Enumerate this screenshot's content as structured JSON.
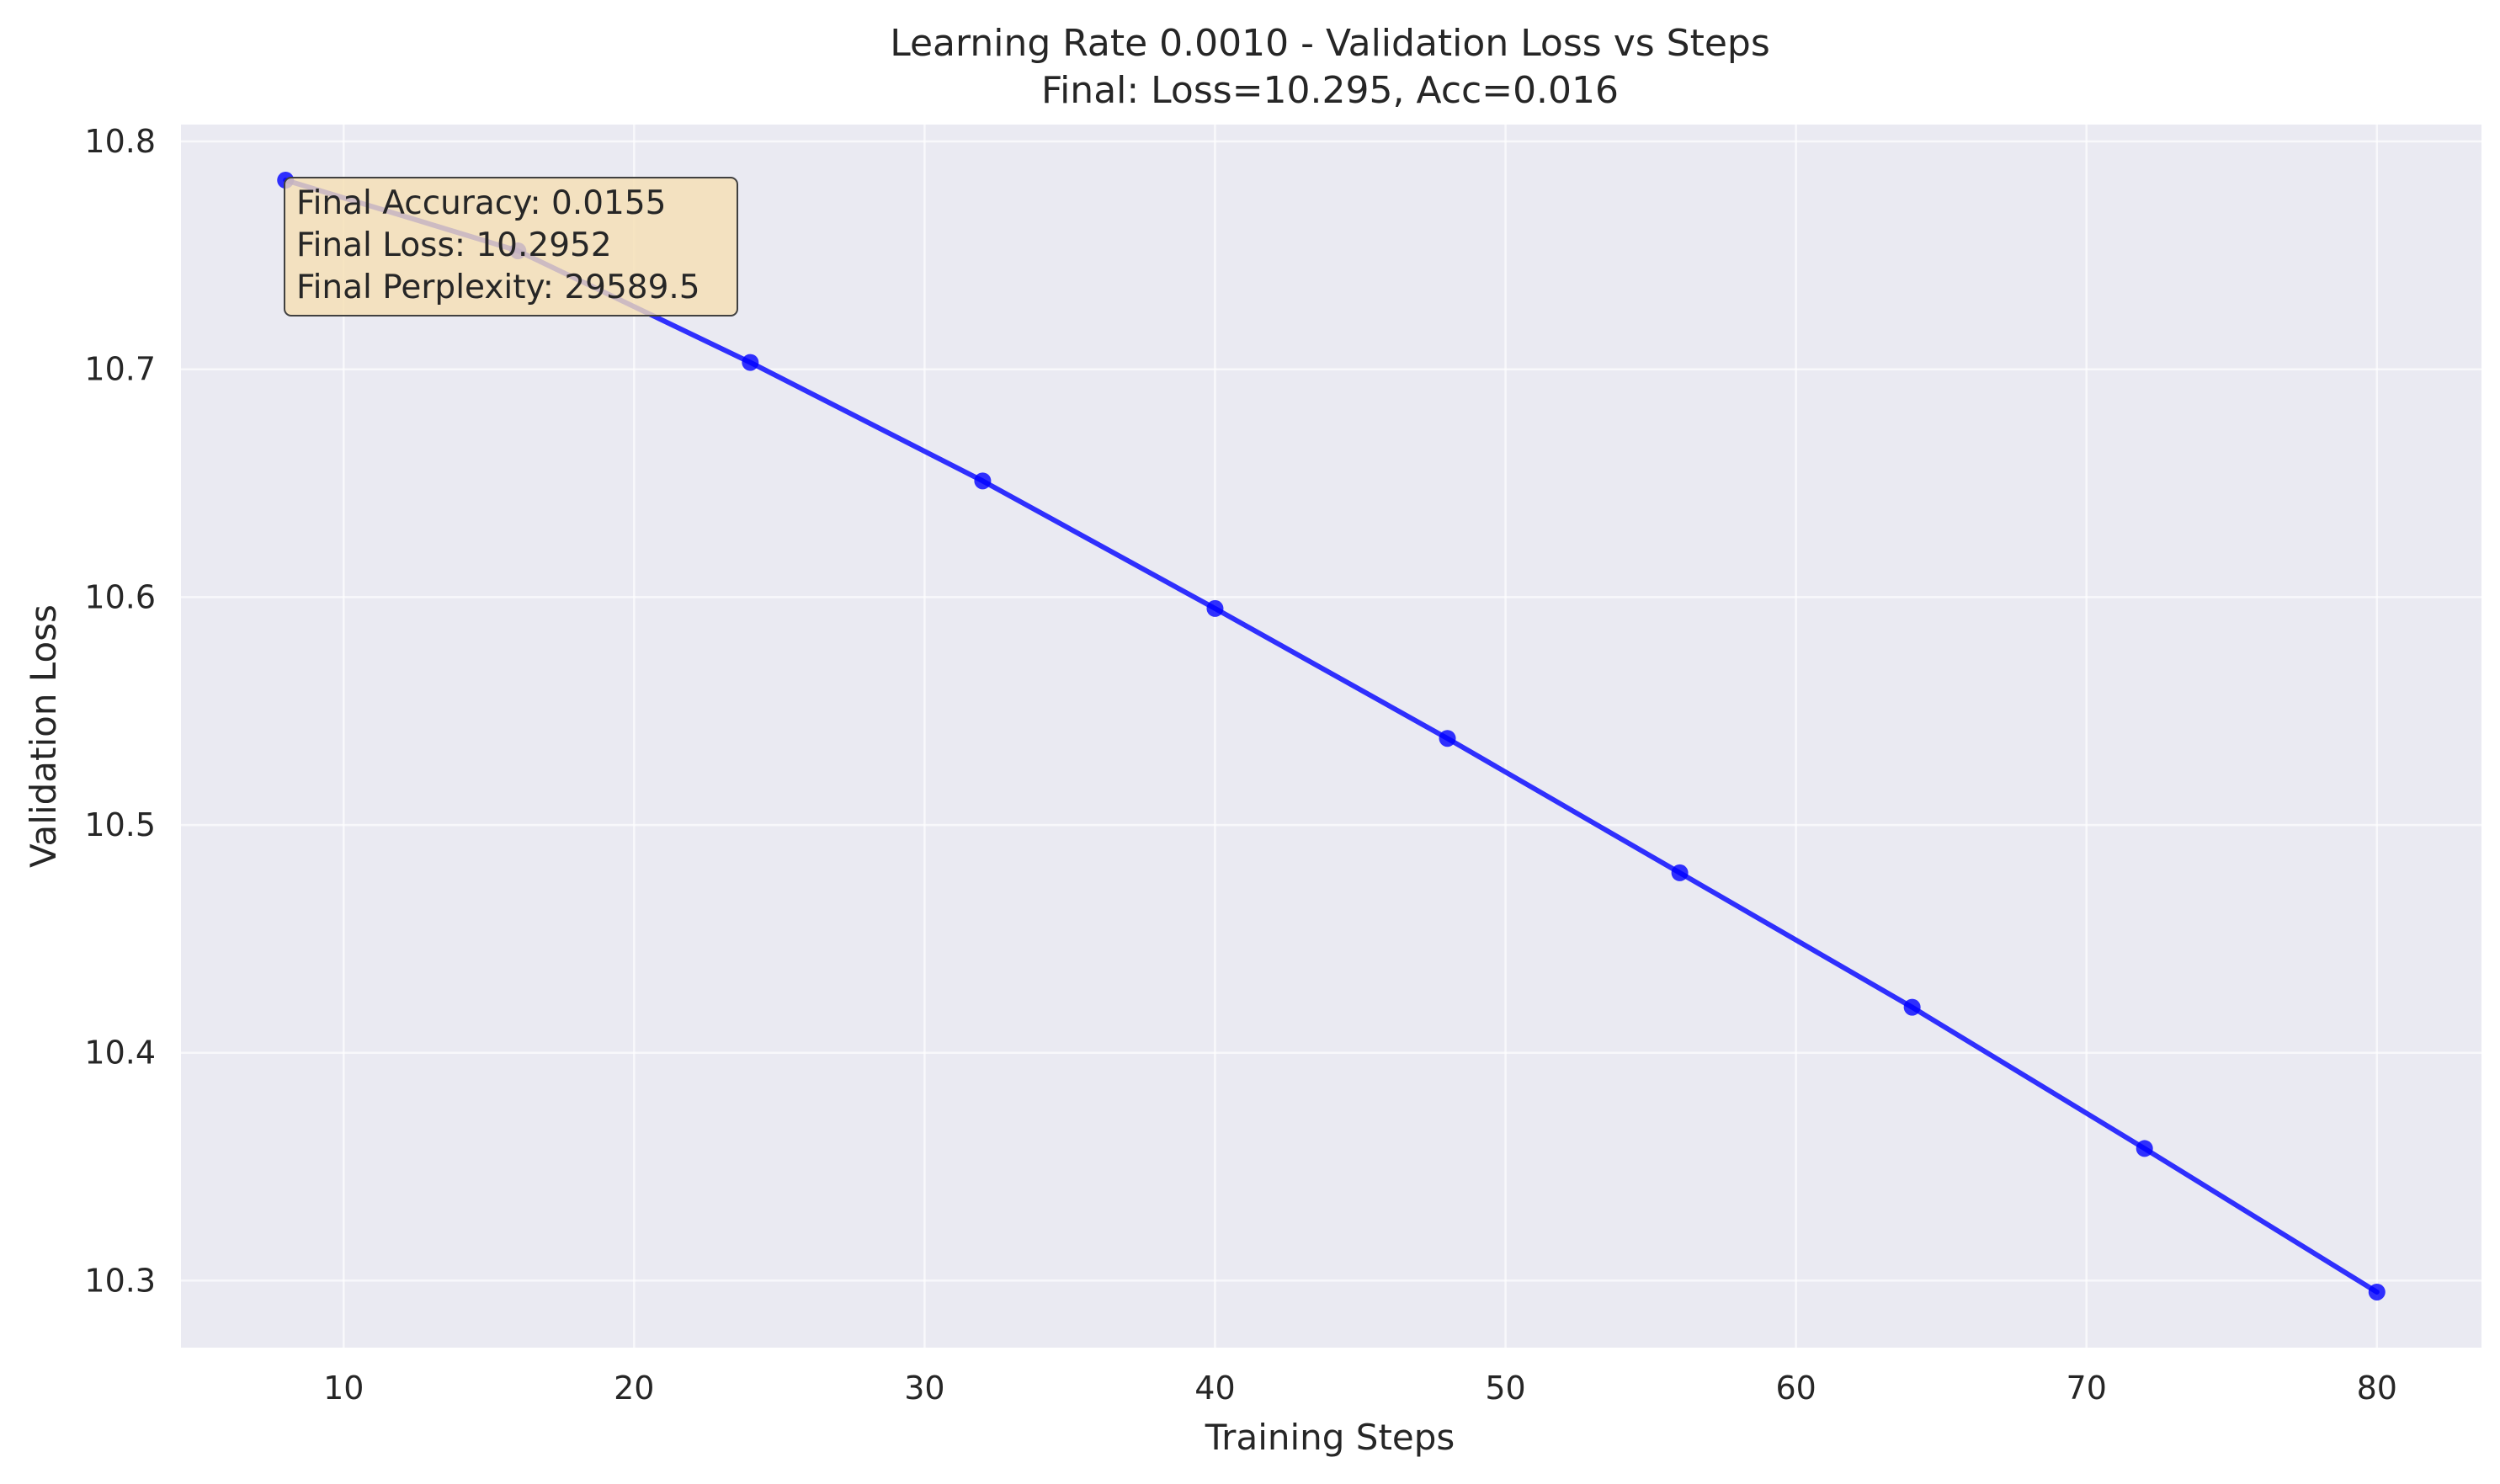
{
  "chart_data": {
    "type": "line",
    "title": "Learning Rate 0.0010 - Validation Loss vs Steps",
    "subtitle": "Final: Loss=10.295, Acc=0.016",
    "xlabel": "Training Steps",
    "ylabel": "Validation Loss",
    "x": [
      8,
      16,
      24,
      32,
      40,
      48,
      56,
      64,
      72,
      80
    ],
    "series": [
      {
        "values": [
          10.783,
          10.752,
          10.703,
          10.651,
          10.595,
          10.538,
          10.479,
          10.42,
          10.358,
          10.295
        ],
        "color": "#0000ff",
        "marker": "circle"
      }
    ],
    "xlim": [
      4.4,
      83.6
    ],
    "ylim": [
      10.2706,
      10.8074
    ],
    "xticks": [
      10,
      20,
      30,
      40,
      50,
      60,
      70,
      80
    ],
    "yticks": [
      10.3,
      10.4,
      10.5,
      10.6,
      10.7,
      10.8
    ],
    "xtick_labels": [
      "10",
      "20",
      "30",
      "40",
      "50",
      "60",
      "70",
      "80"
    ],
    "ytick_labels": [
      "10.3",
      "10.4",
      "10.5",
      "10.6",
      "10.7",
      "10.8"
    ],
    "grid": true,
    "background_color": "#eaeaf2",
    "annotation": {
      "lines": [
        "Final Accuracy: 0.0155",
        "Final Loss: 10.2952",
        "Final Perplexity: 29589.5"
      ],
      "box_color": "#f5deb3",
      "placement": "top-left"
    }
  }
}
